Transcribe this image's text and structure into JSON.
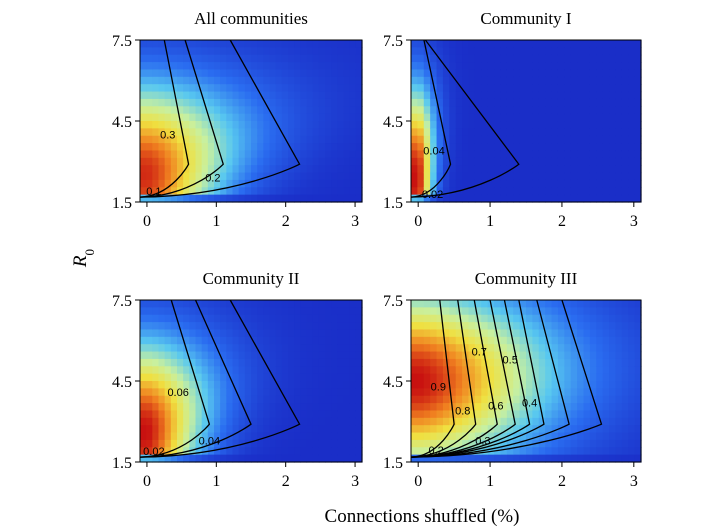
{
  "figure": {
    "ylabel": "R",
    "ylabel_sub": "0",
    "xlabel": "Connections shuffled (%)"
  },
  "chart_data": [
    {
      "type": "heatmap",
      "title": "All communities",
      "xlim": [
        -0.1,
        3.1
      ],
      "ylim": [
        1.5,
        7.5
      ],
      "xticks": [
        "0",
        "1",
        "2",
        "3"
      ],
      "yticks": [
        "1.5",
        "4.5",
        "7.5"
      ],
      "colorscale": [
        "#1a2ec8",
        "#2a6cf0",
        "#58c8f0",
        "#c8f0a0",
        "#f0e040",
        "#f08020",
        "#c81010"
      ],
      "color_max": 0.5,
      "peak": {
        "x": 0.0,
        "y": 2.5,
        "value": 0.48
      },
      "spread": {
        "x0": 0.9,
        "x_per_y": 0.18
      },
      "contours": [
        {
          "level": "0.1",
          "x_at_low": 2.2,
          "x_at_high": 1.2,
          "label_x": 0.1,
          "label_y": 1.9
        },
        {
          "level": "0.2",
          "x_at_low": 1.1,
          "x_at_high": 0.55,
          "label_x": 0.95,
          "label_y": 2.4
        },
        {
          "level": "0.3",
          "x_at_low": 0.6,
          "x_at_high": 0.25,
          "label_x": 0.3,
          "label_y": 4.0
        }
      ]
    },
    {
      "type": "heatmap",
      "title": "Community I",
      "xlim": [
        -0.1,
        3.1
      ],
      "ylim": [
        1.5,
        7.5
      ],
      "xticks": [
        "0",
        "1",
        "2",
        "3"
      ],
      "yticks": [
        "1.5",
        "4.5",
        "7.5"
      ],
      "colorscale": [
        "#1a2ec8",
        "#2a6cf0",
        "#58c8f0",
        "#c8f0a0",
        "#f0e040",
        "#f08020",
        "#c81010"
      ],
      "color_max": 0.08,
      "peak": {
        "x": 0.0,
        "y": 2.4,
        "value": 0.08
      },
      "spread": {
        "x0": 0.18,
        "x_per_y": 0.02
      },
      "contours": [
        {
          "level": "0.02",
          "x_at_low": 1.4,
          "x_at_high": 0.1,
          "label_x": 0.2,
          "label_y": 1.8
        },
        {
          "level": "0.04",
          "x_at_low": 0.45,
          "x_at_high": 0.08,
          "label_x": 0.22,
          "label_y": 3.4
        }
      ]
    },
    {
      "type": "heatmap",
      "title": "Community II",
      "xlim": [
        -0.1,
        3.1
      ],
      "ylim": [
        1.5,
        7.5
      ],
      "xticks": [
        "0",
        "1",
        "2",
        "3"
      ],
      "yticks": [
        "1.5",
        "4.5",
        "7.5"
      ],
      "colorscale": [
        "#1a2ec8",
        "#2a6cf0",
        "#58c8f0",
        "#c8f0a0",
        "#f0e040",
        "#f08020",
        "#c81010"
      ],
      "color_max": 0.12,
      "peak": {
        "x": 0.0,
        "y": 2.6,
        "value": 0.12
      },
      "spread": {
        "x0": 0.65,
        "x_per_y": 0.1
      },
      "contours": [
        {
          "level": "0.02",
          "x_at_low": 2.2,
          "x_at_high": 1.2,
          "label_x": 0.1,
          "label_y": 1.9
        },
        {
          "level": "0.04",
          "x_at_low": 1.5,
          "x_at_high": 0.7,
          "label_x": 0.9,
          "label_y": 2.3
        },
        {
          "level": "0.06",
          "x_at_low": 0.9,
          "x_at_high": 0.35,
          "label_x": 0.45,
          "label_y": 4.1
        }
      ]
    },
    {
      "type": "heatmap",
      "title": "Community III",
      "xlim": [
        -0.1,
        3.1
      ],
      "ylim": [
        1.5,
        7.5
      ],
      "xticks": [
        "0",
        "1",
        "2",
        "3"
      ],
      "yticks": [
        "1.5",
        "4.5",
        "7.5"
      ],
      "colorscale": [
        "#1a2ec8",
        "#2a6cf0",
        "#58c8f0",
        "#c8f0a0",
        "#f0e040",
        "#f08020",
        "#c81010"
      ],
      "color_max": 1.0,
      "peak": {
        "x": 0.0,
        "y": 4.5,
        "value": 1.0
      },
      "spread": {
        "x0": 1.6,
        "x_per_y": 0.05
      },
      "contours": [
        {
          "level": "0.2",
          "x_at_low": 2.55,
          "x_at_high": 2.0,
          "label_x": 0.25,
          "label_y": 1.95
        },
        {
          "level": "0.3",
          "x_at_low": 2.1,
          "x_at_high": 1.65,
          "label_x": 0.9,
          "label_y": 2.3
        },
        {
          "level": "0.4",
          "x_at_low": 1.75,
          "x_at_high": 1.4,
          "label_x": 1.55,
          "label_y": 3.7
        },
        {
          "level": "0.5",
          "x_at_low": 1.55,
          "x_at_high": 1.2,
          "label_x": 1.28,
          "label_y": 5.3
        },
        {
          "level": "0.6",
          "x_at_low": 1.35,
          "x_at_high": 1.0,
          "label_x": 1.08,
          "label_y": 3.6
        },
        {
          "level": "0.7",
          "x_at_low": 1.1,
          "x_at_high": 0.78,
          "label_x": 0.85,
          "label_y": 5.6
        },
        {
          "level": "0.8",
          "x_at_low": 0.8,
          "x_at_high": 0.55,
          "label_x": 0.62,
          "label_y": 3.4
        },
        {
          "level": "0.9",
          "x_at_low": 0.5,
          "x_at_high": 0.3,
          "label_x": 0.28,
          "label_y": 4.3
        }
      ]
    }
  ]
}
